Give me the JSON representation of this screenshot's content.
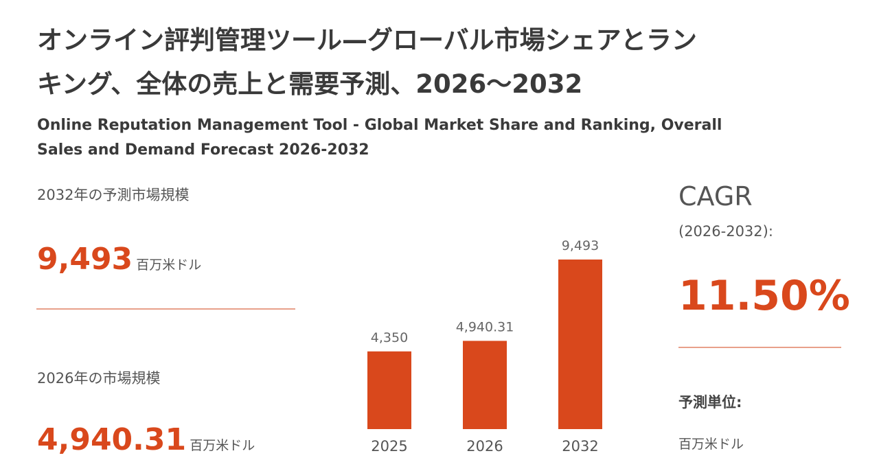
{
  "header": {
    "title_line1": "オンライン評判管理ツール—グローバル市場シェアとラン",
    "title_line2": "キング、全体の売上と需要予測、2026～2032",
    "subtitle_line1": "Online Reputation Management Tool - Global Market Share and Ranking, Overall",
    "subtitle_line2": "Sales and Demand Forecast 2026-2032"
  },
  "left_panel": {
    "forecast_label": "2032年の予測市場規模",
    "forecast_value": "9,493",
    "forecast_unit": "百万米ドル",
    "current_label": "2026年の市場規模",
    "current_value": "4,940.31",
    "current_unit": "百万米ドル"
  },
  "right_panel": {
    "cagr_label": "CAGR",
    "cagr_period": "(2026-2032):",
    "cagr_value": "11.50%",
    "unit_label": "予測単位:",
    "unit_value": "百万米ドル"
  },
  "chart_data": {
    "type": "bar",
    "categories": [
      "2025",
      "2026",
      "2032"
    ],
    "values": [
      4350,
      4940.31,
      9493
    ],
    "value_labels": [
      "4,350",
      "4,940.31",
      "9,493"
    ],
    "color": "#d9481c"
  }
}
